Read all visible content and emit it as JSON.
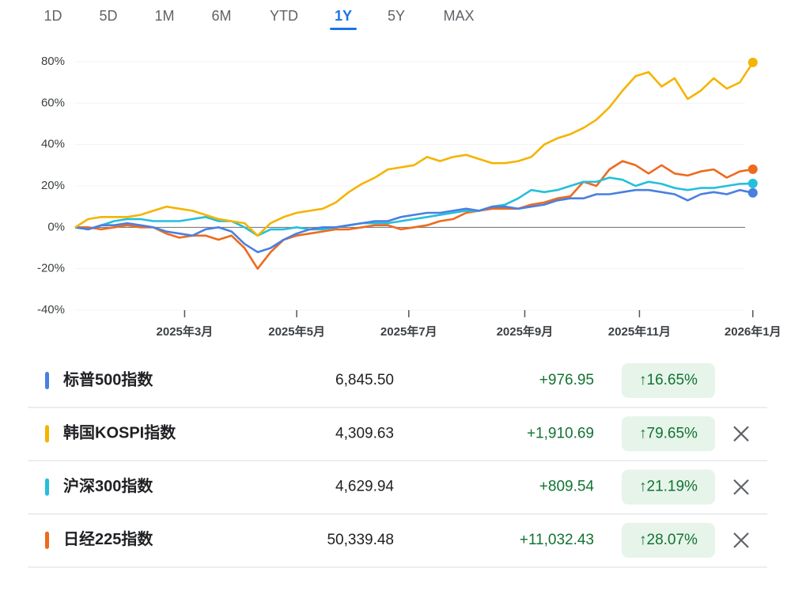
{
  "tabs": [
    {
      "label": "1D",
      "selected": false
    },
    {
      "label": "5D",
      "selected": false
    },
    {
      "label": "1M",
      "selected": false
    },
    {
      "label": "6M",
      "selected": false
    },
    {
      "label": "YTD",
      "selected": false
    },
    {
      "label": "1Y",
      "selected": true
    },
    {
      "label": "5Y",
      "selected": false
    },
    {
      "label": "MAX",
      "selected": false
    }
  ],
  "chart_data": {
    "type": "line",
    "x": [
      0,
      1,
      2,
      3,
      4,
      5,
      6,
      7,
      8,
      9,
      10,
      11,
      12,
      13,
      14,
      15,
      16,
      17,
      18,
      19,
      20,
      21,
      22,
      23,
      24,
      25,
      26,
      27,
      28,
      29,
      30,
      31,
      32,
      33,
      34,
      35,
      36,
      37,
      38,
      39,
      40,
      41,
      42,
      43,
      44,
      45,
      46,
      47,
      48,
      49,
      50,
      51,
      52
    ],
    "xlim": [
      0,
      52.5
    ],
    "xticks": [
      {
        "value": 8.4,
        "label": "2025年3月"
      },
      {
        "value": 17,
        "label": "2025年5月"
      },
      {
        "value": 25.6,
        "label": "2025年7月"
      },
      {
        "value": 34.5,
        "label": "2025年9月"
      },
      {
        "value": 43.3,
        "label": "2025年11月"
      },
      {
        "value": 52,
        "label": "2026年1月"
      }
    ],
    "ylim": [
      -40,
      80
    ],
    "yticks": [
      {
        "value": 80,
        "label": "80%"
      },
      {
        "value": 60,
        "label": "60%"
      },
      {
        "value": 40,
        "label": "40%"
      },
      {
        "value": 20,
        "label": "20%"
      },
      {
        "value": 0,
        "label": "0%"
      },
      {
        "value": -20,
        "label": "-20%"
      },
      {
        "value": -40,
        "label": "-40%"
      }
    ],
    "grid": true,
    "series": [
      {
        "name": "标普500指数",
        "color": "#4a7fe0",
        "values": [
          0,
          -1,
          1,
          1,
          2,
          1,
          0,
          -2,
          -3,
          -4,
          -1,
          0,
          -2,
          -8,
          -12,
          -10,
          -6,
          -3,
          -1,
          0,
          0,
          1,
          2,
          3,
          3,
          5,
          6,
          7,
          7,
          8,
          9,
          8,
          10,
          10,
          9,
          10,
          11,
          13,
          14,
          14,
          16,
          16,
          17,
          18,
          18,
          17,
          16,
          13,
          16,
          17,
          16,
          18,
          16.65
        ]
      },
      {
        "name": "韩国KOSPI指数",
        "color": "#f5b400",
        "values": [
          0,
          4,
          5,
          5,
          5,
          6,
          8,
          10,
          9,
          8,
          6,
          4,
          3,
          2,
          -4,
          2,
          5,
          7,
          8,
          9,
          12,
          17,
          21,
          24,
          28,
          29,
          30,
          34,
          32,
          34,
          35,
          33,
          31,
          31,
          32,
          34,
          40,
          43,
          45,
          48,
          52,
          58,
          66,
          73,
          75,
          68,
          72,
          62,
          66,
          72,
          67,
          70,
          79.65
        ]
      },
      {
        "name": "沪深300指数",
        "color": "#24bfdc",
        "values": [
          0,
          -1,
          1,
          3,
          4,
          4,
          3,
          3,
          3,
          4,
          5,
          3,
          3,
          0,
          -4,
          -1,
          -1,
          0,
          -1,
          -1,
          0,
          1,
          2,
          2,
          2,
          3,
          4,
          5,
          6,
          7,
          8,
          8,
          10,
          11,
          14,
          18,
          17,
          18,
          20,
          22,
          22,
          24,
          23,
          20,
          22,
          21,
          19,
          18,
          19,
          19,
          20,
          21,
          21.19
        ]
      },
      {
        "name": "日经225指数",
        "color": "#ee6a1e",
        "values": [
          0,
          0,
          -1,
          0,
          1,
          0,
          0,
          -3,
          -5,
          -4,
          -4,
          -6,
          -4,
          -10,
          -20,
          -12,
          -6,
          -4,
          -3,
          -2,
          -1,
          -1,
          0,
          1,
          1,
          -1,
          0,
          1,
          3,
          4,
          7,
          8,
          9,
          9,
          9,
          11,
          12,
          14,
          15,
          22,
          20,
          28,
          32,
          30,
          26,
          30,
          26,
          25,
          27,
          28,
          24,
          27,
          28.07
        ]
      }
    ]
  },
  "table": {
    "rows": [
      {
        "price": "6,845.50",
        "change": "+976.95",
        "percent": "↑16.65%",
        "removable": false
      },
      {
        "price": "4,309.63",
        "change": "+1,910.69",
        "percent": "↑79.65%",
        "removable": true
      },
      {
        "price": "4,629.94",
        "change": "+809.54",
        "percent": "↑21.19%",
        "removable": true
      },
      {
        "price": "50,339.48",
        "change": "+11,032.43",
        "percent": "↑28.07%",
        "removable": true
      }
    ]
  }
}
